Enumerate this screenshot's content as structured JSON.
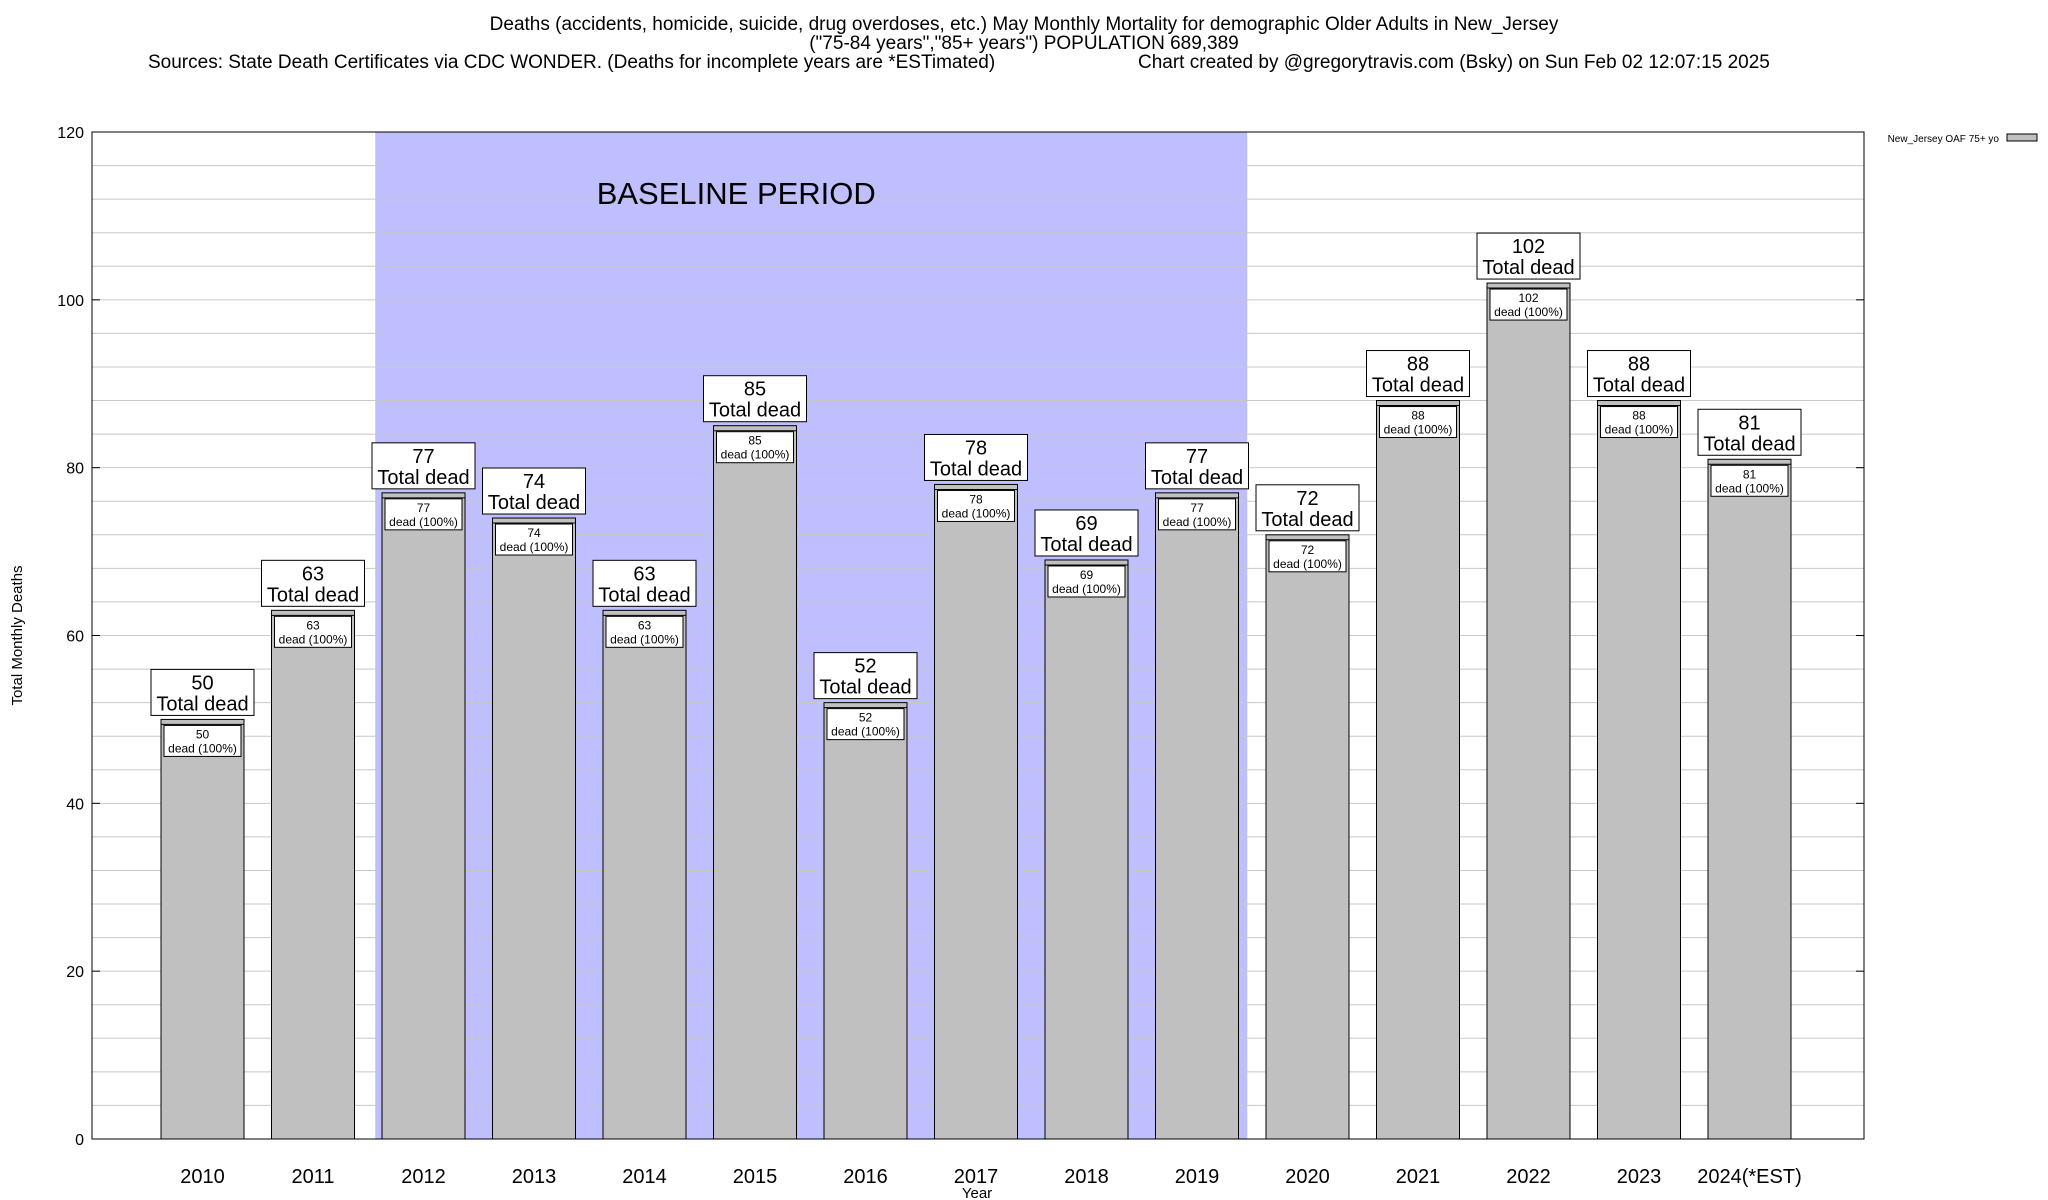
{
  "chart_data": {
    "type": "bar",
    "title": "Deaths (accidents, homicide, suicide, drug overdoses, etc.) May Monthly Mortality for demographic Older Adults in New_Jersey",
    "subtitle": "(\"75-84 years\",\"85+ years\") POPULATION 689,389",
    "source": "Sources: State Death Certificates via CDC WONDER. (Deaths for incomplete years are *ESTimated)",
    "credit": "Chart created by @gregorytravis.com (Bsky) on Sun Feb 02 12:07:15 2025",
    "xlabel": "Year",
    "ylabel": "Total Monthly Deaths",
    "ylim": [
      0,
      120
    ],
    "y_ticks": [
      0,
      20,
      40,
      60,
      80,
      100,
      120
    ],
    "grid": true,
    "legend": {
      "label": "New_Jersey OAF 75+ yo",
      "position": "top-right"
    },
    "baseline": {
      "label": "BASELINE PERIOD",
      "start_category": "2012",
      "end_category": "2019"
    },
    "total_label_suffix": "Total dead",
    "inner_label_suffix": "dead (100%)",
    "categories": [
      "2010",
      "2011",
      "2012",
      "2013",
      "2014",
      "2015",
      "2016",
      "2017",
      "2018",
      "2019",
      "2020",
      "2021",
      "2022",
      "2023",
      "2024(*EST)"
    ],
    "values": [
      50,
      63,
      77,
      74,
      63,
      85,
      52,
      78,
      69,
      77,
      72,
      88,
      102,
      88,
      81
    ],
    "colors": {
      "bar": "#c0c0c0",
      "baseline": "#bfbfff",
      "grid": "#c8c8c8",
      "axis": "#000000"
    }
  }
}
